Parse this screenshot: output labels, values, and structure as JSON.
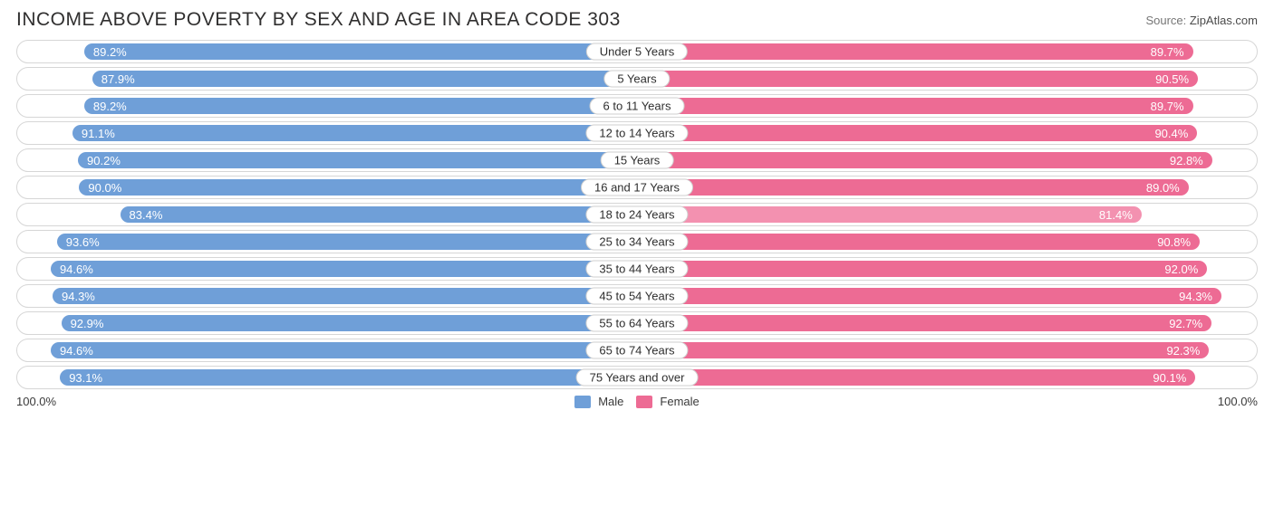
{
  "header": {
    "title": "INCOME ABOVE POVERTY BY SEX AND AGE IN AREA CODE 303",
    "source_prefix": "Source: ",
    "source_site": "ZipAtlas.com"
  },
  "chart": {
    "type": "diverging-bar",
    "male_color": "#6f9fd8",
    "female_color": "#ed6b94",
    "female_color_light": "#f391b0",
    "track_border_color": "#d6d6d6",
    "label_border_color": "#cfcfcf",
    "background_color": "#ffffff",
    "value_text_color": "#ffffff",
    "body_text_color": "#2e2e2e",
    "title_fontsize": 21,
    "value_fontsize": 13,
    "bar_row_height": 26,
    "bar_inner_inset": 3,
    "max_pct": 100.0,
    "rows": [
      {
        "category": "Under 5 Years",
        "male": 89.2,
        "female": 89.7,
        "female_light": false
      },
      {
        "category": "5 Years",
        "male": 87.9,
        "female": 90.5,
        "female_light": false
      },
      {
        "category": "6 to 11 Years",
        "male": 89.2,
        "female": 89.7,
        "female_light": false
      },
      {
        "category": "12 to 14 Years",
        "male": 91.1,
        "female": 90.4,
        "female_light": false
      },
      {
        "category": "15 Years",
        "male": 90.2,
        "female": 92.8,
        "female_light": false
      },
      {
        "category": "16 and 17 Years",
        "male": 90.0,
        "female": 89.0,
        "female_light": false
      },
      {
        "category": "18 to 24 Years",
        "male": 83.4,
        "female": 81.4,
        "female_light": true
      },
      {
        "category": "25 to 34 Years",
        "male": 93.6,
        "female": 90.8,
        "female_light": false
      },
      {
        "category": "35 to 44 Years",
        "male": 94.6,
        "female": 92.0,
        "female_light": false
      },
      {
        "category": "45 to 54 Years",
        "male": 94.3,
        "female": 94.3,
        "female_light": false
      },
      {
        "category": "55 to 64 Years",
        "male": 92.9,
        "female": 92.7,
        "female_light": false
      },
      {
        "category": "65 to 74 Years",
        "male": 94.6,
        "female": 92.3,
        "female_light": false
      },
      {
        "category": "75 Years and over",
        "male": 93.1,
        "female": 90.1,
        "female_light": false
      }
    ]
  },
  "footer": {
    "left_axis_label": "100.0%",
    "right_axis_label": "100.0%",
    "legend_male": "Male",
    "legend_female": "Female"
  }
}
